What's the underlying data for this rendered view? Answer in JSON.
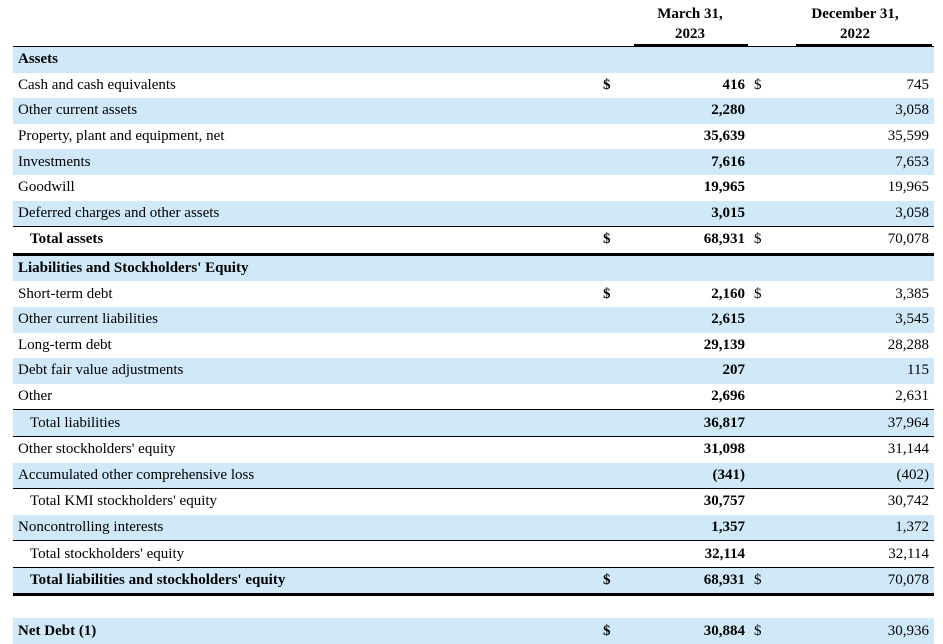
{
  "header": {
    "col1_line1": "March 31,",
    "col1_line2": "2023",
    "col2_line1": "December 31,",
    "col2_line2": "2022"
  },
  "rows": [
    {
      "label": "Assets",
      "cur1": "",
      "v1": "",
      "cur2": "",
      "v2": ""
    },
    {
      "label": "Cash and cash equivalents",
      "cur1": "$",
      "v1": "416",
      "cur2": "$",
      "v2": "745"
    },
    {
      "label": "Other current assets",
      "cur1": "",
      "v1": "2,280",
      "cur2": "",
      "v2": "3,058"
    },
    {
      "label": "Property, plant and equipment, net",
      "cur1": "",
      "v1": "35,639",
      "cur2": "",
      "v2": "35,599"
    },
    {
      "label": "Investments",
      "cur1": "",
      "v1": "7,616",
      "cur2": "",
      "v2": "7,653"
    },
    {
      "label": "Goodwill",
      "cur1": "",
      "v1": "19,965",
      "cur2": "",
      "v2": "19,965"
    },
    {
      "label": "Deferred charges and other assets",
      "cur1": "",
      "v1": "3,015",
      "cur2": "",
      "v2": "3,058"
    },
    {
      "label": "Total assets",
      "cur1": "$",
      "v1": "68,931",
      "cur2": "$",
      "v2": "70,078"
    },
    {
      "label": "Liabilities and Stockholders' Equity",
      "cur1": "",
      "v1": "",
      "cur2": "",
      "v2": ""
    },
    {
      "label": "Short-term debt",
      "cur1": "$",
      "v1": "2,160",
      "cur2": "$",
      "v2": "3,385"
    },
    {
      "label": "Other current liabilities",
      "cur1": "",
      "v1": "2,615",
      "cur2": "",
      "v2": "3,545"
    },
    {
      "label": "Long-term debt",
      "cur1": "",
      "v1": "29,139",
      "cur2": "",
      "v2": "28,288"
    },
    {
      "label": "Debt fair value adjustments",
      "cur1": "",
      "v1": "207",
      "cur2": "",
      "v2": "115"
    },
    {
      "label": "Other",
      "cur1": "",
      "v1": "2,696",
      "cur2": "",
      "v2": "2,631"
    },
    {
      "label": "Total liabilities",
      "cur1": "",
      "v1": "36,817",
      "cur2": "",
      "v2": "37,964"
    },
    {
      "label": "Other stockholders' equity",
      "cur1": "",
      "v1": "31,098",
      "cur2": "",
      "v2": "31,144"
    },
    {
      "label": "Accumulated other comprehensive loss",
      "cur1": "",
      "v1": "(341)",
      "cur2": "",
      "v2": "(402)"
    },
    {
      "label": "Total KMI stockholders' equity",
      "cur1": "",
      "v1": "30,757",
      "cur2": "",
      "v2": "30,742"
    },
    {
      "label": "Noncontrolling interests",
      "cur1": "",
      "v1": "1,357",
      "cur2": "",
      "v2": "1,372"
    },
    {
      "label": "Total stockholders' equity",
      "cur1": "",
      "v1": "32,114",
      "cur2": "",
      "v2": "32,114"
    },
    {
      "label": "Total liabilities and stockholders' equity",
      "cur1": "$",
      "v1": "68,931",
      "cur2": "$",
      "v2": "70,078"
    },
    {
      "label": "",
      "cur1": "",
      "v1": "",
      "cur2": "",
      "v2": ""
    },
    {
      "label": "Net Debt (1)",
      "cur1": "$",
      "v1": "30,884",
      "cur2": "$",
      "v2": "30,936"
    }
  ]
}
